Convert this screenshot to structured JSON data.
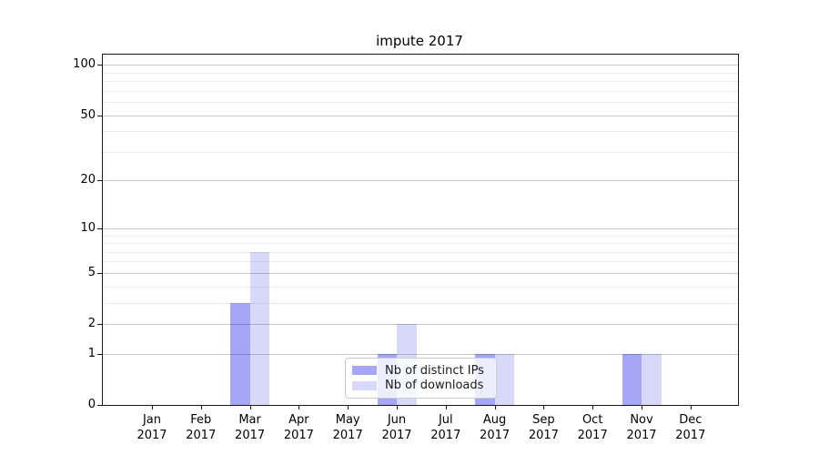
{
  "title": "impute 2017",
  "chart_data": {
    "type": "bar",
    "title": "impute 2017",
    "categories": [
      "Jan 2017",
      "Feb 2017",
      "Mar 2017",
      "Apr 2017",
      "May 2017",
      "Jun 2017",
      "Jul 2017",
      "Aug 2017",
      "Sep 2017",
      "Oct 2017",
      "Nov 2017",
      "Dec 2017"
    ],
    "series": [
      {
        "name": "Nb of distinct IPs",
        "color": "rgba(0,0,230,0.35)",
        "values": [
          0,
          0,
          3,
          0,
          0,
          1,
          0,
          1,
          0,
          0,
          1,
          0
        ]
      },
      {
        "name": "Nb of downloads",
        "color": "rgba(10,10,215,0.16)",
        "values": [
          0,
          0,
          7,
          0,
          0,
          2,
          0,
          1,
          0,
          0,
          1,
          0
        ]
      }
    ],
    "xlabel": "",
    "ylabel": "",
    "yscale": "log1p",
    "ylim": [
      0,
      115
    ],
    "yticks": [
      0,
      1,
      2,
      5,
      10,
      20,
      50,
      100
    ],
    "yticks_minor": [
      3,
      4,
      6,
      7,
      8,
      9,
      30,
      40,
      60,
      70,
      80,
      90
    ],
    "grid": true,
    "legend_position": "lower center"
  },
  "legend": {
    "entries": [
      "Nb of distinct IPs",
      "Nb of downloads"
    ]
  },
  "colors": {
    "bar_distinct_ips": "rgba(0,0,230,0.35)",
    "bar_downloads": "rgba(10,10,215,0.16)",
    "grid_major": "#c8c8c8",
    "grid_minor": "#ececec",
    "spine": "#1a1a1a"
  }
}
